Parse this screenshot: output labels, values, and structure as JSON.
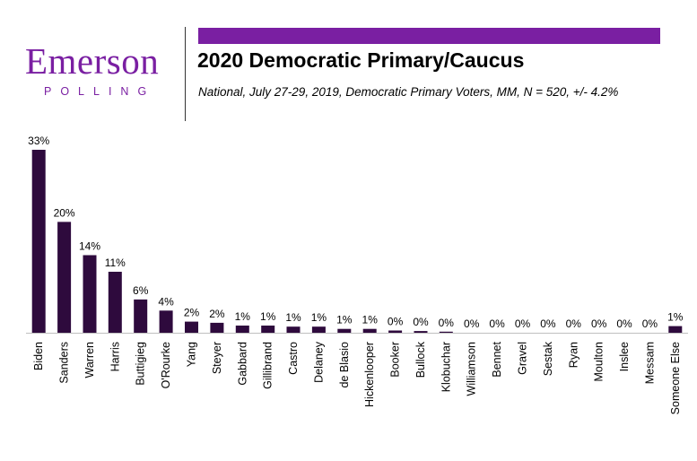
{
  "logo": {
    "name": "Emerson",
    "sub": "POLLING"
  },
  "header": {
    "title": "2020 Democratic Primary/Caucus",
    "subtitle": "National, July 27-29, 2019, Democratic Primary Voters, MM, N = 520, +/- 4.2%"
  },
  "colors": {
    "bar": "#2e0a3d",
    "accent": "#7a1fa2"
  },
  "chart_data": {
    "type": "bar",
    "categories": [
      "Biden",
      "Sanders",
      "Warren",
      "Harris",
      "Buttigieg",
      "O'Rourke",
      "Yang",
      "Steyer",
      "Gabbard",
      "Gillibrand",
      "Castro",
      "Delaney",
      "de Blasio",
      "Hickenlooper",
      "Booker",
      "Bullock",
      "Klobuchar",
      "Williamson",
      "Bennet",
      "Gravel",
      "Sestak",
      "Ryan",
      "Moulton",
      "Inslee",
      "Messam",
      "Someone Else"
    ],
    "values": [
      33,
      20,
      14,
      11,
      6,
      4,
      2,
      2,
      1,
      1,
      1,
      1,
      1,
      1,
      0,
      0,
      0,
      0,
      0,
      0,
      0,
      0,
      0,
      0,
      0,
      1
    ],
    "display_values": [
      33.0,
      20.0,
      14.0,
      11.0,
      6.0,
      4.0,
      2.0,
      1.8,
      1.3,
      1.3,
      1.1,
      1.1,
      0.7,
      0.7,
      0.4,
      0.3,
      0.2,
      0.0,
      0.0,
      0.0,
      0.0,
      0.0,
      0.0,
      0.0,
      0.0,
      1.2
    ],
    "labels": [
      "33%",
      "20%",
      "14%",
      "11%",
      "6%",
      "4%",
      "2%",
      "2%",
      "1%",
      "1%",
      "1%",
      "1%",
      "1%",
      "1%",
      "0%",
      "0%",
      "0%",
      "0%",
      "0%",
      "0%",
      "0%",
      "0%",
      "0%",
      "0%",
      "0%",
      "1%"
    ],
    "ylim": [
      0,
      33
    ],
    "grid": false,
    "legend": false
  }
}
